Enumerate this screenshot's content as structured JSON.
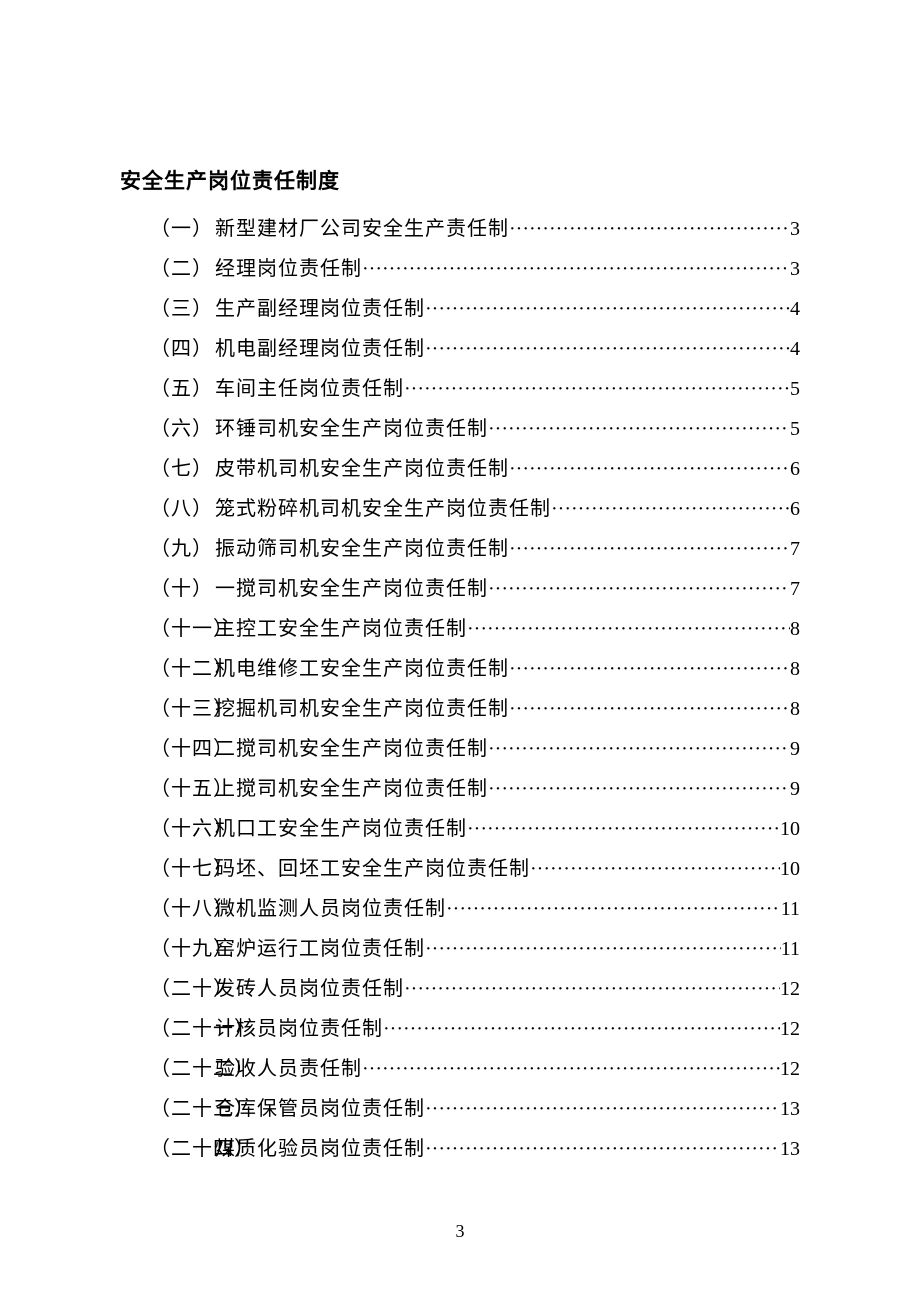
{
  "title": "安全生产岗位责任制度",
  "page_number": "3",
  "toc": [
    {
      "num": "（一）",
      "label": "新型建材厂公司安全生产责任制",
      "page": "3"
    },
    {
      "num": "（二）",
      "label": "经理岗位责任制",
      "page": "3"
    },
    {
      "num": "（三）",
      "label": "生产副经理岗位责任制",
      "page": "4"
    },
    {
      "num": "（四）",
      "label": "机电副经理岗位责任制",
      "page": "4"
    },
    {
      "num": "（五）",
      "label": "车间主任岗位责任制",
      "page": "5"
    },
    {
      "num": "（六）",
      "label": "环锤司机安全生产岗位责任制",
      "page": "5"
    },
    {
      "num": "（七）",
      "label": "皮带机司机安全生产岗位责任制",
      "page": "6"
    },
    {
      "num": "（八）",
      "label": "笼式粉碎机司机安全生产岗位责任制",
      "page": "6"
    },
    {
      "num": "（九）",
      "label": "振动筛司机安全生产岗位责任制",
      "page": "7"
    },
    {
      "num": "（十）",
      "label": "一搅司机安全生产岗位责任制",
      "page": "7"
    },
    {
      "num": "（十一）",
      "label": "主控工安全生产岗位责任制",
      "page": "8"
    },
    {
      "num": "（十二）",
      "label": "机电维修工安全生产岗位责任制",
      "page": "8"
    },
    {
      "num": "（十三）",
      "label": "挖掘机司机安全生产岗位责任制",
      "page": "8"
    },
    {
      "num": "（十四）",
      "label": "二搅司机安全生产岗位责任制",
      "page": "9"
    },
    {
      "num": "（十五）",
      "label": "上搅司机安全生产岗位责任制",
      "page": "9"
    },
    {
      "num": "（十六）",
      "label": "机口工安全生产岗位责任制",
      "page": "10"
    },
    {
      "num": "（十七）",
      "label": "码坯、回坯工安全生产岗位责任制",
      "page": "10"
    },
    {
      "num": "（十八）",
      "label": "微机监测人员岗位责任制",
      "page": "11"
    },
    {
      "num": "（十九）",
      "label": "窑炉运行工岗位责任制",
      "page": "11"
    },
    {
      "num": "（二十）",
      "label": "发砖人员岗位责任制",
      "page": "12"
    },
    {
      "num": "（二十一）",
      "label": "计核员岗位责任制",
      "page": "12"
    },
    {
      "num": "（二十二）",
      "label": "验收人员责任制",
      "page": "12"
    },
    {
      "num": "（二十三）",
      "label": "仓库保管员岗位责任制",
      "page": "13"
    },
    {
      "num": "（二十四）",
      "label": "煤质化验员岗位责任制",
      "page": "13"
    }
  ]
}
